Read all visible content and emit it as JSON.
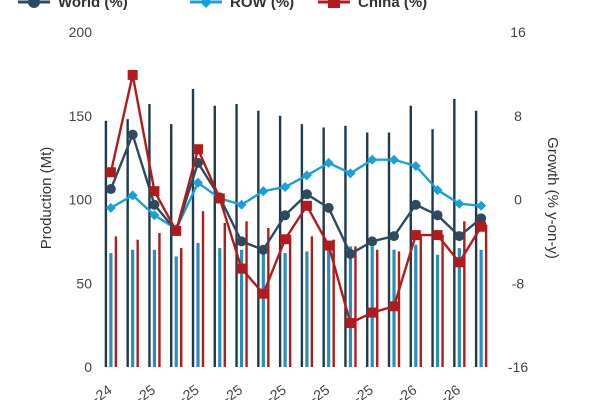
{
  "chart_data": {
    "type": "bar",
    "title": "",
    "x_tick_labels": [
      "-24",
      "-25",
      "-25",
      "-25",
      "-25",
      "-25",
      "-25",
      "-26",
      "-26"
    ],
    "y_left": {
      "label": "Production (Mt)",
      "range": [
        0,
        200
      ],
      "ticks": [
        0,
        50,
        100,
        150,
        200
      ]
    },
    "y_right": {
      "label": "Growth (% y-on-y)",
      "range": [
        -16,
        16
      ],
      "ticks": [
        -16,
        -8,
        0,
        8,
        16
      ]
    },
    "legend_placement": "top",
    "bar_series": [
      {
        "axis": "left",
        "color": "#1f3a4d",
        "values": [
          147,
          148,
          157,
          145,
          166,
          156,
          157,
          153,
          150,
          145,
          143,
          144,
          140,
          140,
          156,
          142,
          160,
          153
        ]
      },
      {
        "axis": "left",
        "color": "#2a8fbf",
        "values": [
          68,
          70,
          70,
          66,
          74,
          71,
          70,
          68,
          68,
          69,
          70,
          72,
          72,
          70,
          73,
          67,
          71,
          70
        ]
      },
      {
        "axis": "left",
        "color": "#b01c1c",
        "values": [
          78,
          76,
          80,
          71,
          93,
          86,
          87,
          83,
          79,
          78,
          76,
          72,
          70,
          69,
          78,
          79,
          87,
          85
        ]
      }
    ],
    "line_series": [
      {
        "name": "World (%)",
        "axis": "right",
        "color": "#2e4a5e",
        "marker": "circle",
        "values": [
          1.0,
          6.2,
          -0.5,
          -3.0,
          3.5,
          0.2,
          -4.0,
          -4.8,
          -1.5,
          0.5,
          -0.8,
          -5.2,
          -4.0,
          -3.5,
          -0.5,
          -1.5,
          -3.5,
          -1.8
        ]
      },
      {
        "name": "ROW (%)",
        "axis": "right",
        "color": "#1aa0d6",
        "marker": "diamond",
        "values": [
          -0.8,
          0.4,
          -1.5,
          -2.8,
          1.6,
          0.1,
          -0.5,
          0.8,
          1.2,
          2.3,
          3.5,
          2.5,
          3.8,
          3.8,
          3.2,
          0.9,
          -0.4,
          -0.6
        ]
      },
      {
        "name": "China (%)",
        "axis": "right",
        "color": "#b01c1c",
        "marker": "square",
        "values": [
          2.6,
          11.9,
          0.8,
          -3.0,
          4.8,
          0.1,
          -6.6,
          -9.0,
          -3.8,
          -0.6,
          -4.4,
          -11.8,
          -10.8,
          -10.2,
          -3.4,
          -3.4,
          -6.0,
          -2.6
        ]
      }
    ]
  }
}
